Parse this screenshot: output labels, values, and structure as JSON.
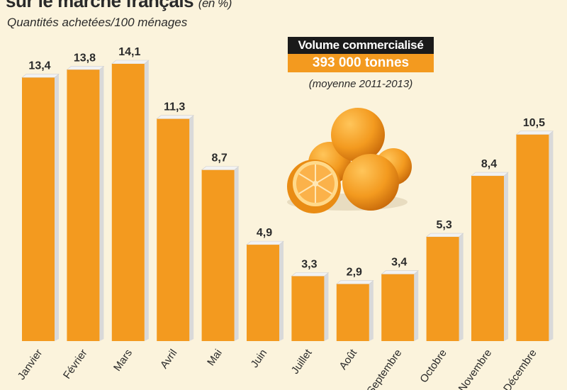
{
  "header": {
    "title": "sur le marché français",
    "title_unit": "(en %)",
    "subtitle": "Quantités achetées/100 ménages"
  },
  "callout": {
    "label": "Volume commercialisé",
    "value": "393 000 tonnes",
    "note": "(moyenne 2011-2013)"
  },
  "colors": {
    "bar": "#f39a1f",
    "bar_side": "#d9d9d9",
    "bar_top": "#f2f2f2",
    "background": "#fbf3dc",
    "text": "#2a2a2a"
  },
  "chart_data": {
    "type": "bar",
    "categories": [
      "Janvier",
      "Février",
      "Mars",
      "Avril",
      "Mai",
      "Juin",
      "Juillet",
      "Août",
      "Septembre",
      "Octobre",
      "Novembre",
      "Décembre"
    ],
    "values": [
      13.4,
      13.8,
      14.1,
      11.3,
      8.7,
      4.9,
      3.3,
      2.9,
      3.4,
      5.3,
      8.4,
      10.5
    ],
    "labels": [
      "13,4",
      "13,8",
      "14,1",
      "11,3",
      "8,7",
      "4,9",
      "3,3",
      "2,9",
      "3,4",
      "5,3",
      "8,4",
      "10,5"
    ],
    "ylim": [
      0,
      14.1
    ],
    "grid": false,
    "legend": "none"
  }
}
